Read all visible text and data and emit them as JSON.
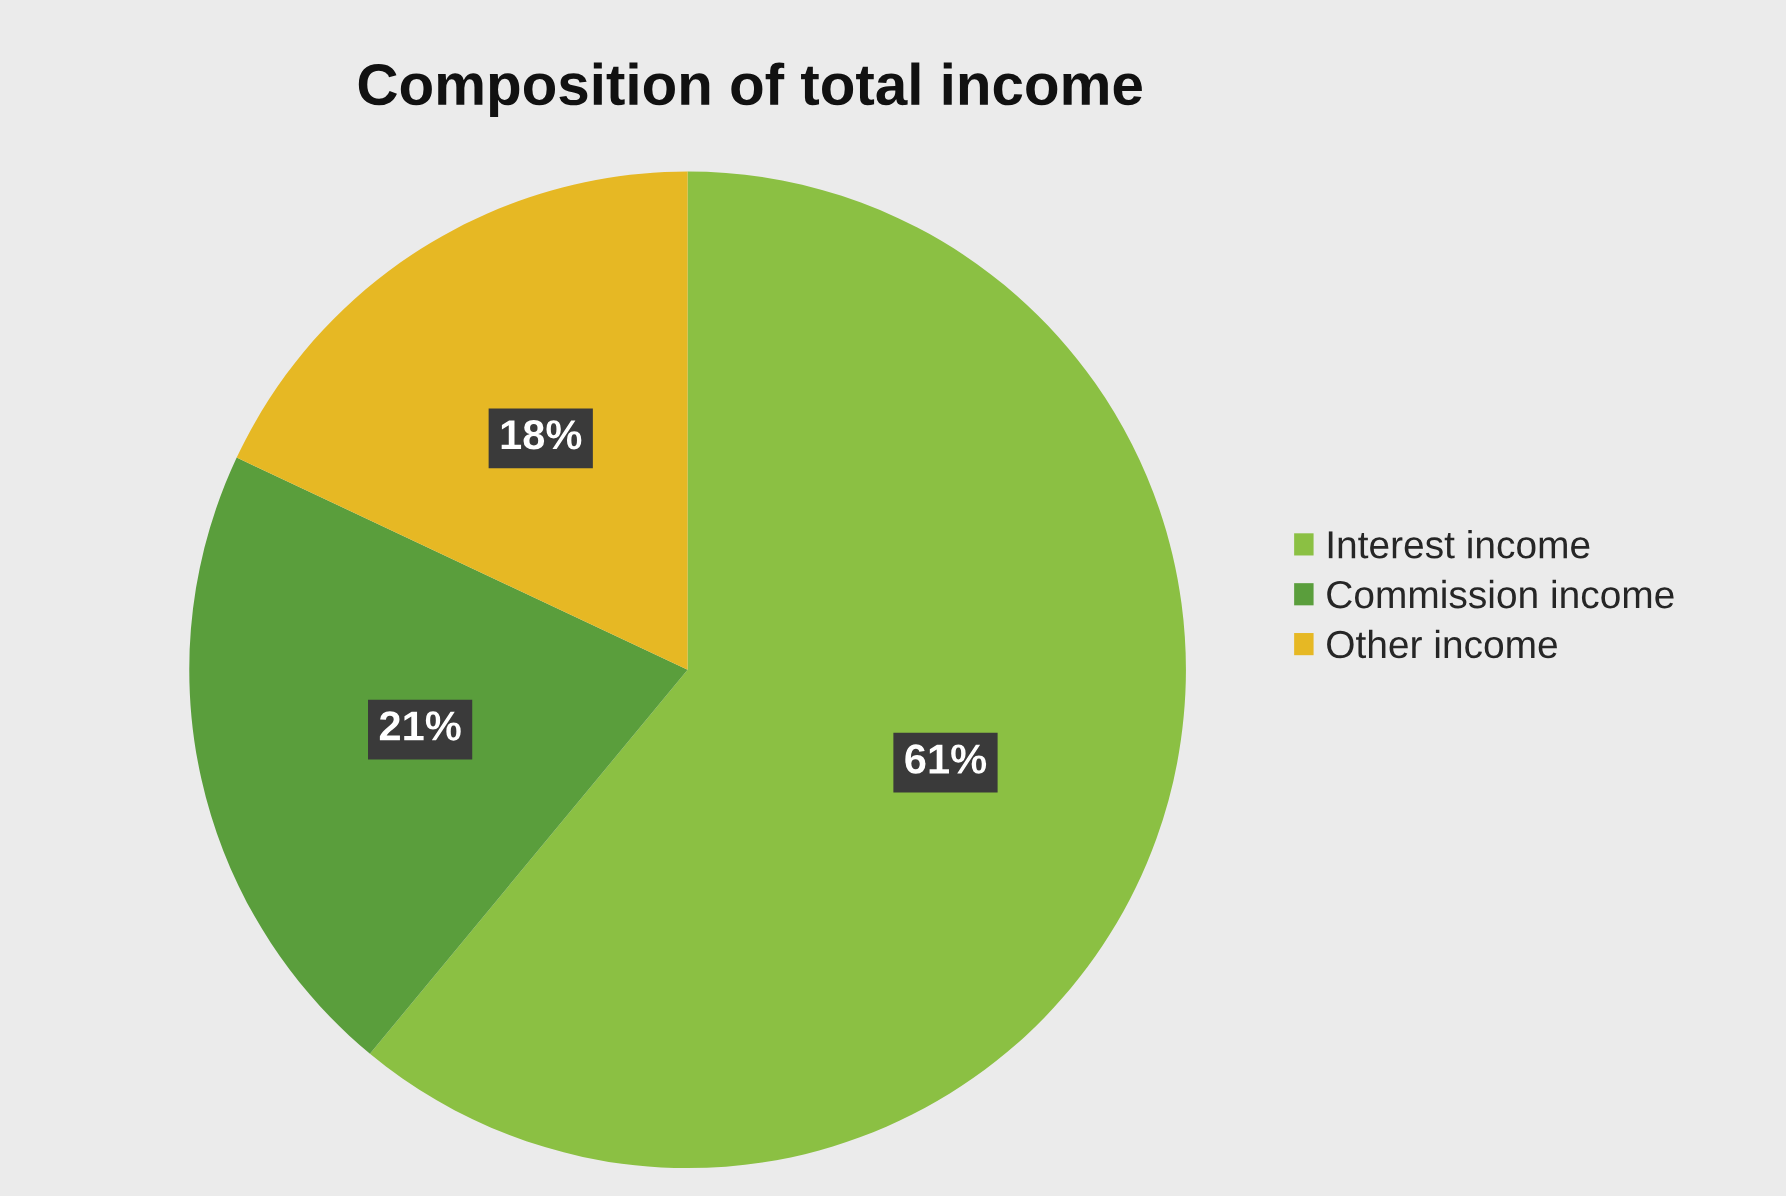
{
  "chart_data": {
    "type": "pie",
    "title": "Composition of total income",
    "categories": [
      "Interest income",
      "Commission income",
      "Other income"
    ],
    "values": [
      61,
      21,
      18
    ],
    "value_labels": [
      "61%",
      "21%",
      "18%"
    ],
    "colors": [
      "#8bc043",
      "#5a9e3c",
      "#e6b824"
    ],
    "legend": "right"
  }
}
